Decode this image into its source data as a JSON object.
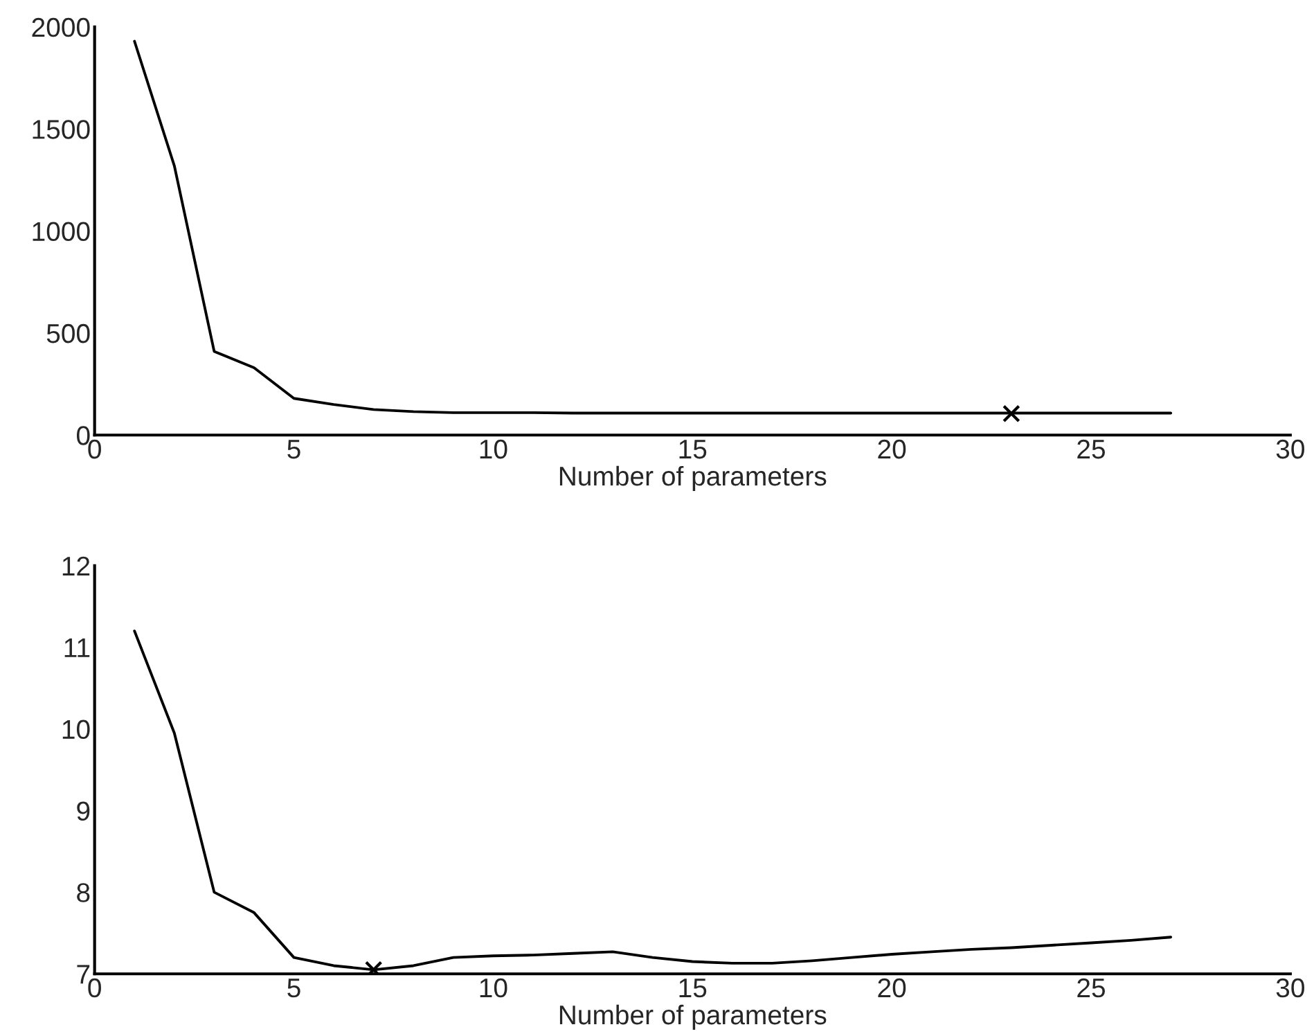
{
  "chart_data": [
    {
      "type": "line",
      "xlabel": "Number of parameters",
      "xlim": [
        0,
        30
      ],
      "xticks": [
        0,
        5,
        10,
        15,
        20,
        25,
        30
      ],
      "ylim": [
        0,
        2000
      ],
      "yticks": [
        0,
        500,
        1000,
        1500,
        2000
      ],
      "grid": false,
      "series": [
        {
          "color": "#000000",
          "marker": "none",
          "x": [
            1,
            2,
            3,
            4,
            5,
            6,
            7,
            8,
            9,
            10,
            11,
            12,
            13,
            14,
            15,
            16,
            17,
            18,
            19,
            20,
            21,
            22,
            23,
            24,
            25,
            26,
            27
          ],
          "values": [
            1930,
            1320,
            410,
            330,
            180,
            150,
            125,
            115,
            110,
            110,
            110,
            108,
            108,
            108,
            108,
            108,
            108,
            108,
            108,
            108,
            108,
            108,
            108,
            108,
            108,
            108,
            108
          ]
        },
        {
          "type": "scatter",
          "color": "#000000",
          "marker": "cross",
          "x": [
            23
          ],
          "values": [
            105
          ]
        }
      ]
    },
    {
      "type": "line",
      "xlabel": "Number of parameters",
      "xlim": [
        0,
        30
      ],
      "xticks": [
        0,
        5,
        10,
        15,
        20,
        25,
        30
      ],
      "ylim": [
        7,
        12
      ],
      "yticks": [
        7,
        8,
        9,
        10,
        11,
        12
      ],
      "grid": false,
      "series": [
        {
          "color": "#000000",
          "marker": "none",
          "x": [
            1,
            2,
            3,
            4,
            5,
            6,
            7,
            8,
            9,
            10,
            11,
            12,
            13,
            14,
            15,
            16,
            17,
            18,
            19,
            20,
            21,
            22,
            23,
            24,
            25,
            26,
            27
          ],
          "values": [
            11.2,
            9.95,
            8.0,
            7.75,
            7.2,
            7.1,
            7.05,
            7.1,
            7.2,
            7.22,
            7.23,
            7.25,
            7.27,
            7.2,
            7.15,
            7.13,
            7.13,
            7.16,
            7.2,
            7.24,
            7.27,
            7.3,
            7.32,
            7.35,
            7.38,
            7.41,
            7.45
          ]
        },
        {
          "type": "scatter",
          "color": "#000000",
          "marker": "cross",
          "x": [
            7
          ],
          "values": [
            7.05
          ]
        }
      ]
    }
  ]
}
